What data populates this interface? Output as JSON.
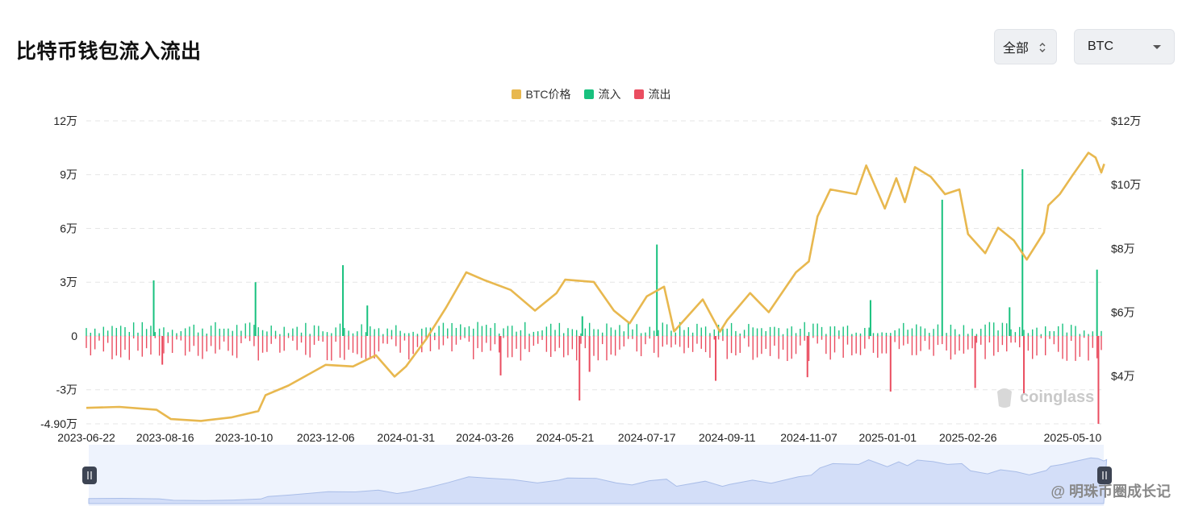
{
  "page": {
    "title": "比特币钱包流入流出",
    "range_select": "全部",
    "coin_select": "BTC",
    "watermark": "@ 明珠币圈成长记",
    "brand": "coinglass"
  },
  "colors": {
    "price": "#e8b84f",
    "inflow": "#18c17e",
    "outflow": "#ea4d60",
    "grid": "#e6e6e6"
  },
  "chart_data": {
    "type": "bar+line",
    "legend": [
      "BTC价格",
      "流入",
      "流出"
    ],
    "x_tick_labels": [
      "2023-06-22",
      "2023-08-16",
      "2023-10-10",
      "2023-12-06",
      "2024-01-31",
      "2024-03-26",
      "2024-05-21",
      "2024-07-17",
      "2024-09-11",
      "2024-11-07",
      "2025-01-01",
      "2025-02-26",
      "2025-05-10"
    ],
    "x_range": [
      "2023-06-22",
      "2025-05-30"
    ],
    "left_axis": {
      "ticks": [
        120000,
        90000,
        60000,
        30000,
        0,
        -30000,
        -49000
      ],
      "tick_labels": [
        "12万",
        "9万",
        "6万",
        "3万",
        "0",
        "-3万",
        "-4.90万"
      ],
      "range": [
        -49000,
        120000
      ]
    },
    "right_axis": {
      "ticks": [
        120000,
        100000,
        80000,
        60000,
        40000
      ],
      "tick_labels": [
        "$12万",
        "$10万",
        "$8万",
        "$6万",
        "$4万"
      ],
      "range": [
        25000,
        120000
      ]
    },
    "grid": true,
    "series": [
      {
        "name": "BTC价格",
        "type": "line",
        "points": [
          [
            "2023-06-22",
            30000
          ],
          [
            "2023-07-15",
            30300
          ],
          [
            "2023-08-10",
            29400
          ],
          [
            "2023-08-20",
            26500
          ],
          [
            "2023-09-10",
            25900
          ],
          [
            "2023-10-01",
            27000
          ],
          [
            "2023-10-20",
            29000
          ],
          [
            "2023-10-25",
            34000
          ],
          [
            "2023-11-10",
            37000
          ],
          [
            "2023-12-06",
            43500
          ],
          [
            "2023-12-25",
            43000
          ],
          [
            "2024-01-10",
            46500
          ],
          [
            "2024-01-23",
            39800
          ],
          [
            "2024-01-31",
            43000
          ],
          [
            "2024-02-14",
            51500
          ],
          [
            "2024-02-28",
            61500
          ],
          [
            "2024-03-13",
            72500
          ],
          [
            "2024-03-26",
            70000
          ],
          [
            "2024-04-13",
            67000
          ],
          [
            "2024-04-30",
            60500
          ],
          [
            "2024-05-15",
            66000
          ],
          [
            "2024-05-21",
            70200
          ],
          [
            "2024-06-10",
            69500
          ],
          [
            "2024-06-24",
            60500
          ],
          [
            "2024-07-05",
            56500
          ],
          [
            "2024-07-17",
            65000
          ],
          [
            "2024-07-29",
            68000
          ],
          [
            "2024-08-05",
            54000
          ],
          [
            "2024-08-25",
            64000
          ],
          [
            "2024-09-06",
            53900
          ],
          [
            "2024-09-11",
            57500
          ],
          [
            "2024-09-27",
            66000
          ],
          [
            "2024-10-10",
            60000
          ],
          [
            "2024-10-29",
            72500
          ],
          [
            "2024-11-07",
            75900
          ],
          [
            "2024-11-13",
            90000
          ],
          [
            "2024-11-22",
            98500
          ],
          [
            "2024-12-10",
            97000
          ],
          [
            "2024-12-17",
            106000
          ],
          [
            "2024-12-30",
            92500
          ],
          [
            "2025-01-07",
            102000
          ],
          [
            "2025-01-13",
            94500
          ],
          [
            "2025-01-20",
            105500
          ],
          [
            "2025-01-31",
            102500
          ],
          [
            "2025-02-10",
            97000
          ],
          [
            "2025-02-20",
            98500
          ],
          [
            "2025-02-26",
            84500
          ],
          [
            "2025-03-10",
            78500
          ],
          [
            "2025-03-19",
            86500
          ],
          [
            "2025-03-30",
            82500
          ],
          [
            "2025-04-08",
            76500
          ],
          [
            "2025-04-20",
            85000
          ],
          [
            "2025-04-23",
            93500
          ],
          [
            "2025-05-01",
            97000
          ],
          [
            "2025-05-10",
            103000
          ],
          [
            "2025-05-21",
            110000
          ],
          [
            "2025-05-26",
            108500
          ],
          [
            "2025-05-30",
            103800
          ],
          [
            "2025-06-01",
            106500
          ]
        ]
      },
      {
        "name": "流入",
        "type": "bar",
        "spikes": [
          [
            "2023-08-08",
            31000
          ],
          [
            "2023-10-18",
            30000
          ],
          [
            "2023-12-18",
            39500
          ],
          [
            "2024-01-04",
            17000
          ],
          [
            "2024-06-02",
            11000
          ],
          [
            "2024-07-24",
            51000
          ],
          [
            "2024-12-20",
            20000
          ],
          [
            "2025-02-08",
            76000
          ],
          [
            "2025-03-27",
            16000
          ],
          [
            "2025-04-05",
            93000
          ],
          [
            "2025-05-27",
            37000
          ]
        ],
        "baseline_range": [
          1000,
          8000
        ]
      },
      {
        "name": "流出",
        "type": "bar",
        "spikes": [
          [
            "2023-08-14",
            -16000
          ],
          [
            "2024-04-06",
            -22000
          ],
          [
            "2024-05-31",
            -36000
          ],
          [
            "2024-06-07",
            -20000
          ],
          [
            "2024-09-03",
            -25000
          ],
          [
            "2024-11-06",
            -23000
          ],
          [
            "2025-01-03",
            -31000
          ],
          [
            "2025-03-03",
            -29000
          ],
          [
            "2025-04-06",
            -32000
          ],
          [
            "2025-05-28",
            -49000
          ]
        ],
        "baseline_range": [
          -14000,
          -1000
        ]
      }
    ]
  }
}
